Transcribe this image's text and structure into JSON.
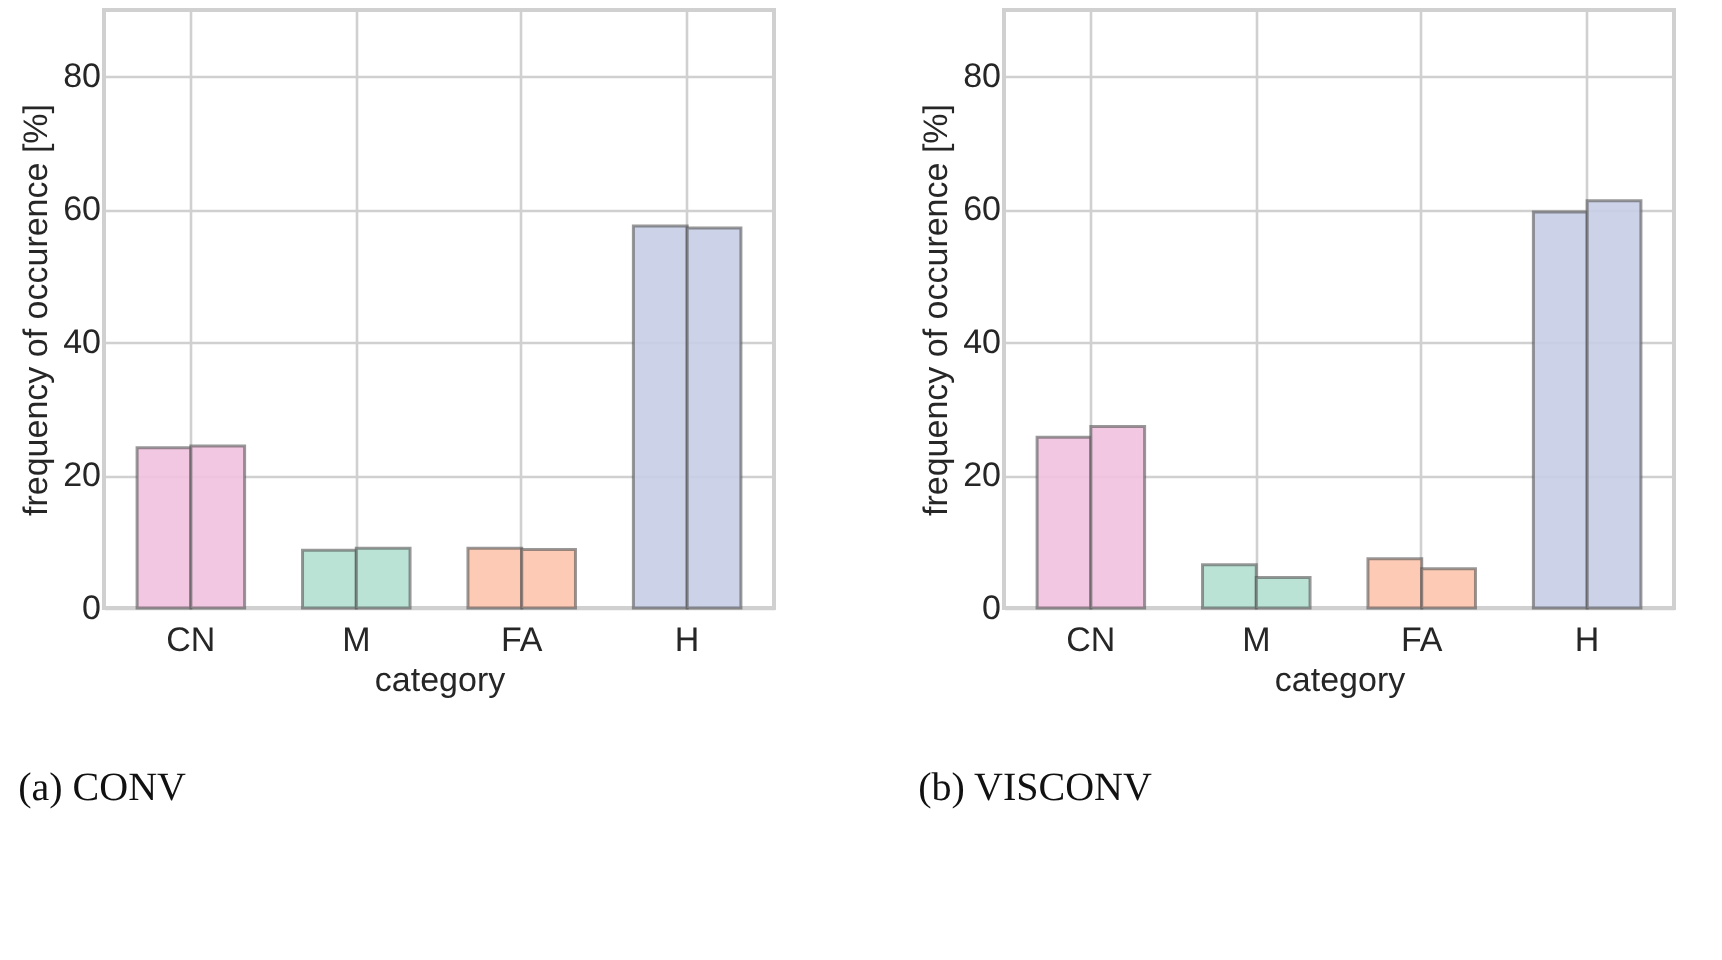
{
  "chart_data": [
    {
      "type": "bar",
      "title": "(a) CONV",
      "xlabel": "category",
      "ylabel": "frequency of occurence [%]",
      "categories": [
        "CN",
        "M",
        "FA",
        "H"
      ],
      "ylim": [
        0,
        90
      ],
      "yticks": [
        0,
        20,
        40,
        60,
        80
      ],
      "grid": true,
      "series": [
        {
          "colors": [
            "#f1c1df",
            "#b2e0d2",
            "#fcc4ad",
            "#c6cde4"
          ],
          "values": [
            24.1,
            8.7,
            9.0,
            57.5
          ]
        },
        {
          "colors": [
            "#f1c1df",
            "#b2e0d2",
            "#fcc4ad",
            "#c6cde4"
          ],
          "values": [
            24.4,
            9.0,
            8.8,
            57.2
          ]
        }
      ]
    },
    {
      "type": "bar",
      "title": "(b) VISCONV",
      "xlabel": "category",
      "ylabel": "frequency of occurence [%]",
      "categories": [
        "CN",
        "M",
        "FA",
        "H"
      ],
      "ylim": [
        0,
        90
      ],
      "yticks": [
        0,
        20,
        40,
        60,
        80
      ],
      "grid": true,
      "series": [
        {
          "colors": [
            "#f1c1df",
            "#b2e0d2",
            "#fcc4ad",
            "#c6cde4"
          ],
          "values": [
            25.7,
            6.5,
            7.4,
            59.6
          ]
        },
        {
          "colors": [
            "#f1c1df",
            "#b2e0d2",
            "#fcc4ad",
            "#c6cde4"
          ],
          "values": [
            27.3,
            4.6,
            5.9,
            61.3
          ]
        }
      ]
    }
  ]
}
